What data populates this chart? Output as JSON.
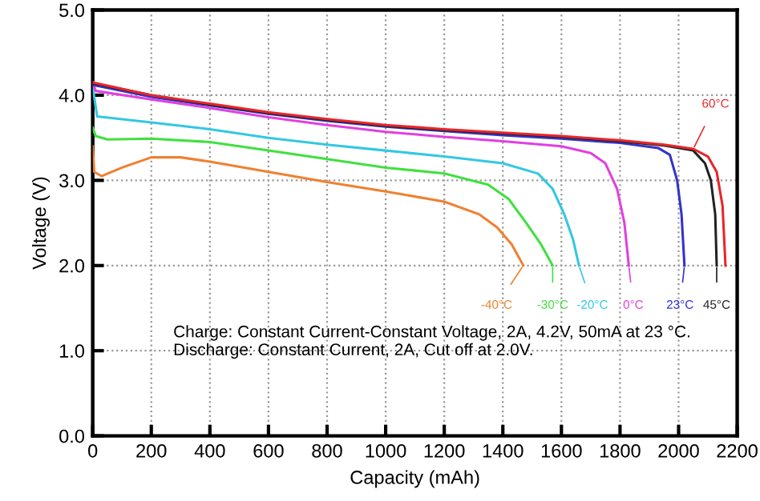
{
  "chart_data": {
    "type": "line",
    "xlabel": "Capacity (mAh)",
    "ylabel": "Voltage (V)",
    "xlim": [
      0,
      2200
    ],
    "xticks": [
      0,
      200,
      400,
      600,
      800,
      1000,
      1200,
      1400,
      1600,
      1800,
      2000,
      2200
    ],
    "ylim": [
      0.0,
      5.0
    ],
    "yticks": [
      {
        "value": 0,
        "label": "0.0"
      },
      {
        "value": 1,
        "label": "1.0"
      },
      {
        "value": 2,
        "label": "2.0"
      },
      {
        "value": 3,
        "label": "3.0"
      },
      {
        "value": 4,
        "label": "4.0"
      },
      {
        "value": 5,
        "label": "5.0"
      }
    ],
    "grid": true,
    "legend": false,
    "marker": "none",
    "line_style": "solid",
    "annotations": [
      "Charge: Constant Current-Constant Voltage, 2A, 4.2V, 50mA at 23 °C.",
      "Discharge: Constant Current, 2A, Cut off at 2.0V."
    ],
    "series": [
      {
        "name": "60°C",
        "color": "#e8262a",
        "x": [
          0,
          200,
          400,
          600,
          800,
          1000,
          1200,
          1400,
          1600,
          1800,
          1950,
          2050,
          2100,
          2130,
          2150,
          2160
        ],
        "values": [
          4.15,
          4.0,
          3.9,
          3.8,
          3.72,
          3.65,
          3.6,
          3.56,
          3.52,
          3.47,
          3.42,
          3.37,
          3.28,
          3.1,
          2.7,
          2.0
        ]
      },
      {
        "name": "45°C",
        "color": "#222222",
        "x": [
          0,
          200,
          400,
          600,
          800,
          1000,
          1200,
          1400,
          1600,
          1800,
          1950,
          2050,
          2090,
          2110,
          2125,
          2130
        ],
        "values": [
          4.14,
          4.0,
          3.89,
          3.79,
          3.71,
          3.64,
          3.59,
          3.55,
          3.51,
          3.46,
          3.41,
          3.35,
          3.2,
          3.0,
          2.6,
          2.0
        ]
      },
      {
        "name": "23°C",
        "color": "#3333cc",
        "x": [
          0,
          200,
          400,
          600,
          800,
          1000,
          1200,
          1400,
          1600,
          1800,
          1930,
          1970,
          1995,
          2010,
          2020
        ],
        "values": [
          4.12,
          3.98,
          3.88,
          3.78,
          3.7,
          3.63,
          3.58,
          3.53,
          3.49,
          3.44,
          3.38,
          3.3,
          3.0,
          2.6,
          2.0
        ]
      },
      {
        "name": "0°C",
        "color": "#e040e0",
        "x": [
          0,
          10,
          200,
          400,
          600,
          800,
          1000,
          1200,
          1400,
          1600,
          1700,
          1750,
          1790,
          1815,
          1830
        ],
        "values": [
          4.15,
          4.05,
          3.95,
          3.85,
          3.74,
          3.65,
          3.57,
          3.51,
          3.46,
          3.4,
          3.32,
          3.2,
          2.9,
          2.5,
          2.0
        ]
      },
      {
        "name": "-20°C",
        "color": "#33c8e0",
        "x": [
          0,
          15,
          200,
          400,
          600,
          800,
          1000,
          1200,
          1400,
          1520,
          1570,
          1610,
          1640,
          1660
        ],
        "values": [
          4.1,
          3.75,
          3.68,
          3.6,
          3.5,
          3.42,
          3.35,
          3.28,
          3.2,
          3.08,
          2.9,
          2.6,
          2.3,
          2.0
        ]
      },
      {
        "name": "-30°C",
        "color": "#40e040",
        "x": [
          0,
          10,
          50,
          200,
          400,
          600,
          800,
          1000,
          1200,
          1350,
          1420,
          1480,
          1530,
          1570
        ],
        "values": [
          3.62,
          3.52,
          3.48,
          3.49,
          3.45,
          3.35,
          3.25,
          3.15,
          3.08,
          2.95,
          2.78,
          2.5,
          2.25,
          2.0
        ]
      },
      {
        "name": "-40°C",
        "color": "#f08030",
        "x": [
          0,
          5,
          30,
          100,
          200,
          300,
          400,
          600,
          800,
          1000,
          1200,
          1320,
          1380,
          1430,
          1470
        ],
        "values": [
          3.4,
          3.1,
          3.05,
          3.15,
          3.27,
          3.27,
          3.22,
          3.1,
          2.98,
          2.87,
          2.75,
          2.6,
          2.45,
          2.25,
          2.0
        ]
      }
    ]
  }
}
